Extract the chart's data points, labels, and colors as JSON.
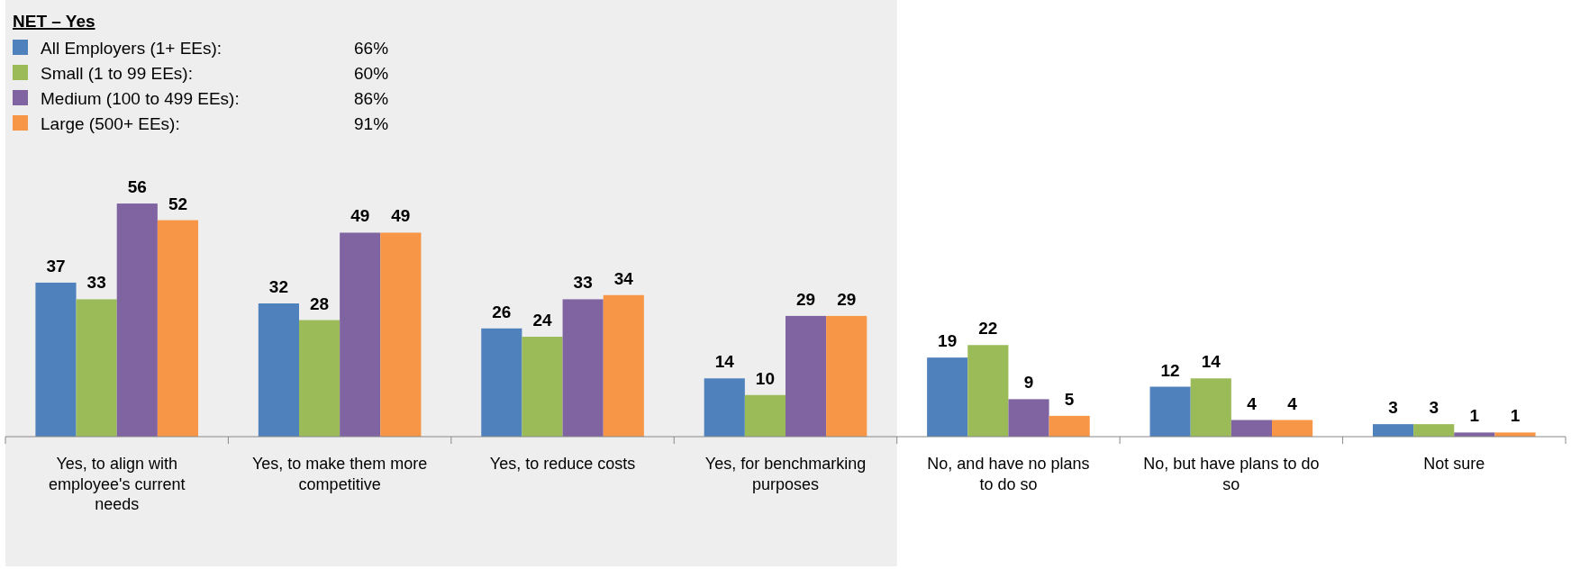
{
  "chart_data": {
    "type": "bar",
    "legend_title": "NET – Yes",
    "legend": "top left",
    "data_labels": true,
    "categories": [
      "Yes, to align with employee's current needs",
      "Yes, to make them more competitive",
      "Yes, to reduce costs",
      "Yes, for benchmarking purposes",
      "No, and have no plans to do so",
      "No, but have plans to do so",
      "Not sure"
    ],
    "series": [
      {
        "name": "All Employers (1+ EEs):",
        "color": "#4f81bd",
        "values": [
          37,
          32,
          26,
          14,
          19,
          12,
          3
        ]
      },
      {
        "name": "Small (1 to 99 EEs):",
        "color": "#9bbb59",
        "values": [
          33,
          28,
          24,
          10,
          22,
          14,
          3
        ]
      },
      {
        "name": "Medium (100 to 499 EEs):",
        "color": "#8064a2",
        "values": [
          56,
          49,
          33,
          29,
          9,
          4,
          1
        ]
      },
      {
        "name": "Large (500+ EEs):",
        "color": "#f79646",
        "values": [
          52,
          49,
          34,
          29,
          5,
          4,
          1
        ]
      }
    ],
    "annotations": [
      "66%",
      "60%",
      "86%",
      "91%"
    ],
    "bands": [
      {
        "axis": "x",
        "from": "Yes, to align with employee's current needs",
        "to": "Yes, for benchmarking purposes",
        "color": "#eeeeee"
      }
    ]
  }
}
